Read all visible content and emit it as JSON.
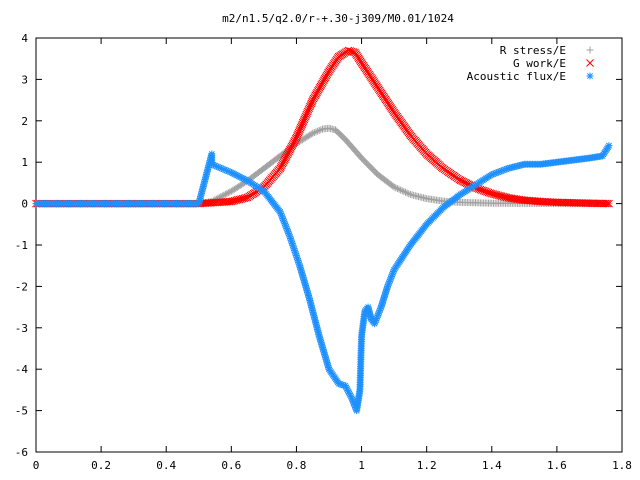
{
  "chart_data": {
    "type": "scatter",
    "title": "m2/n1.5/q2.0/r-+.30-j309/M0.01/1024",
    "xlabel": "",
    "ylabel": "",
    "xlim": [
      0,
      1.8
    ],
    "ylim": [
      -6,
      4
    ],
    "x_ticks": [
      "0",
      "0.2",
      "0.4",
      "0.6",
      "0.8",
      "1",
      "1.2",
      "1.4",
      "1.6",
      "1.8"
    ],
    "y_ticks": [
      "4",
      "3",
      "2",
      "1",
      "0",
      "-1",
      "-2",
      "-3",
      "-4",
      "-5",
      "-6"
    ],
    "grid": false,
    "legend_position": "top-right",
    "series": [
      {
        "name": "R stress/E",
        "marker": "plus",
        "color": "#a0a0a0",
        "x": [
          0.0,
          0.1,
          0.2,
          0.3,
          0.4,
          0.5,
          0.54,
          0.6,
          0.65,
          0.7,
          0.75,
          0.8,
          0.85,
          0.88,
          0.9,
          0.92,
          0.95,
          1.0,
          1.05,
          1.1,
          1.15,
          1.2,
          1.25,
          1.3,
          1.35,
          1.4,
          1.5,
          1.6,
          1.7,
          1.76
        ],
        "y": [
          0,
          0,
          0,
          0,
          0,
          0,
          0.05,
          0.3,
          0.55,
          0.85,
          1.15,
          1.45,
          1.7,
          1.8,
          1.82,
          1.78,
          1.55,
          1.1,
          0.7,
          0.4,
          0.22,
          0.12,
          0.06,
          0.03,
          0.02,
          0.01,
          0.005,
          0.0,
          0.0,
          0.0
        ]
      },
      {
        "name": "G work/E",
        "marker": "cross",
        "color": "#ff0000",
        "x": [
          0.0,
          0.1,
          0.2,
          0.3,
          0.4,
          0.5,
          0.54,
          0.6,
          0.65,
          0.7,
          0.75,
          0.8,
          0.85,
          0.9,
          0.93,
          0.96,
          0.98,
          1.0,
          1.05,
          1.1,
          1.15,
          1.2,
          1.25,
          1.3,
          1.35,
          1.4,
          1.45,
          1.5,
          1.55,
          1.6,
          1.7,
          1.76
        ],
        "y": [
          0,
          0,
          0,
          0,
          0,
          0,
          0.02,
          0.05,
          0.15,
          0.4,
          0.85,
          1.6,
          2.5,
          3.2,
          3.55,
          3.7,
          3.65,
          3.4,
          2.8,
          2.2,
          1.65,
          1.2,
          0.85,
          0.58,
          0.38,
          0.24,
          0.14,
          0.08,
          0.05,
          0.03,
          0.01,
          0.0
        ]
      },
      {
        "name": "Acoustic flux/E",
        "marker": "star",
        "color": "#1e90ff",
        "x": [
          0.0,
          0.1,
          0.2,
          0.3,
          0.4,
          0.5,
          0.54,
          0.54,
          0.6,
          0.65,
          0.7,
          0.75,
          0.78,
          0.81,
          0.84,
          0.87,
          0.9,
          0.93,
          0.95,
          0.97,
          0.985,
          0.995,
          1.0,
          1.01,
          1.02,
          1.03,
          1.04,
          1.06,
          1.08,
          1.1,
          1.15,
          1.2,
          1.25,
          1.3,
          1.35,
          1.4,
          1.45,
          1.5,
          1.55,
          1.6,
          1.65,
          1.7,
          1.74,
          1.76
        ],
        "y": [
          0,
          0,
          0,
          0,
          0,
          0,
          1.2,
          0.95,
          0.75,
          0.55,
          0.3,
          -0.2,
          -0.8,
          -1.5,
          -2.3,
          -3.2,
          -4.0,
          -4.35,
          -4.4,
          -4.7,
          -5.0,
          -4.5,
          -3.2,
          -2.6,
          -2.5,
          -2.8,
          -2.9,
          -2.5,
          -2.0,
          -1.6,
          -1.0,
          -0.5,
          -0.1,
          0.2,
          0.45,
          0.7,
          0.85,
          0.95,
          0.95,
          1.0,
          1.05,
          1.1,
          1.15,
          1.4
        ]
      }
    ]
  }
}
